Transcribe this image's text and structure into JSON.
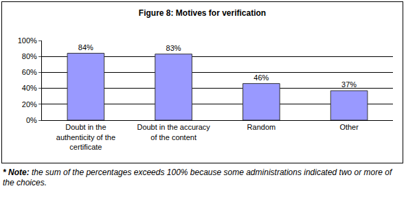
{
  "chart_data": {
    "type": "bar",
    "title": "Figure 8: Motives for verification",
    "categories": [
      "Doubt in the authenticity of the certificate",
      "Doubt in the accuracy of the content",
      "Random",
      "Other"
    ],
    "values": [
      84,
      83,
      46,
      37
    ],
    "value_labels": [
      "84%",
      "83%",
      "46%",
      "37%"
    ],
    "data_labels": true,
    "color": "#9999ff",
    "ylim": [
      0,
      100
    ],
    "yticks": [
      {
        "value": 0,
        "label": "0%"
      },
      {
        "value": 20,
        "label": "20%"
      },
      {
        "value": 40,
        "label": "40%"
      },
      {
        "value": 60,
        "label": "60%"
      },
      {
        "value": 80,
        "label": "80%"
      },
      {
        "value": 100,
        "label": "100%"
      }
    ],
    "grid": true,
    "note": {
      "label": "* Note:",
      "text": "the sum of the percentages exceeds 100% because some administrations indicated two or more of the choices."
    }
  }
}
